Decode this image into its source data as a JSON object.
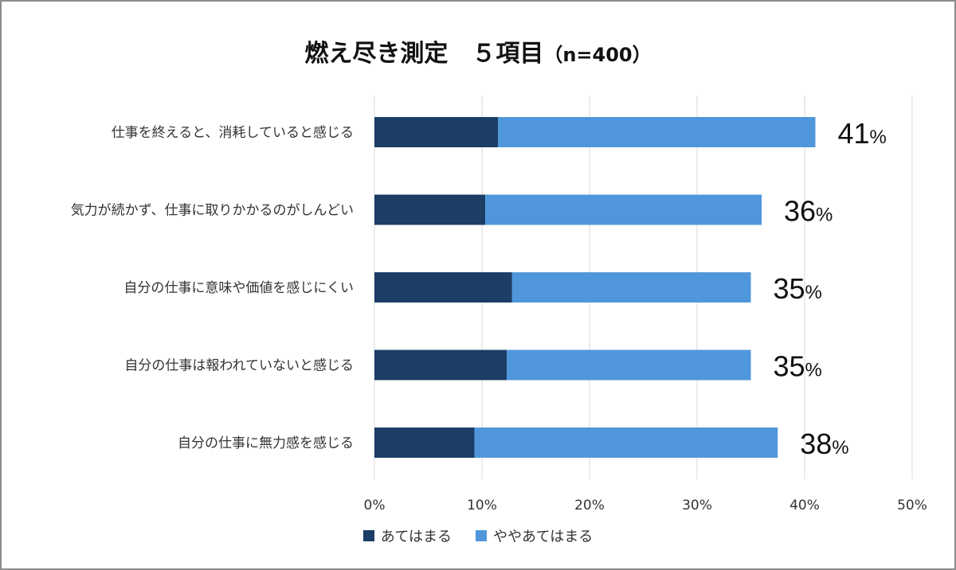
{
  "title": {
    "main": "燃え尽き測定　５項目",
    "sub": "（n=400）"
  },
  "colors": {
    "series1": "#1b3d66",
    "series2": "#4f97da",
    "grid": "#d9d9d9"
  },
  "chart_data": {
    "type": "bar",
    "orientation": "horizontal",
    "stacked": true,
    "categories": [
      "仕事を終えると、消耗していると感じる",
      "気力が続かず、仕事に取りかかるのがしんどい",
      "自分の仕事に意味や価値を感じにくい",
      "自分の仕事は報われていないと感じる",
      "自分の仕事に無力感を感じる"
    ],
    "series": [
      {
        "name": "あてはまる",
        "values": [
          11.5,
          10.3,
          12.8,
          12.3,
          9.3
        ]
      },
      {
        "name": "ややあてはまる",
        "values": [
          29.5,
          25.7,
          22.2,
          22.7,
          28.2
        ]
      }
    ],
    "totals": [
      "41",
      "36",
      "35",
      "35",
      "38"
    ],
    "total_suffix": "%",
    "xlim": [
      0,
      50
    ],
    "ticks": [
      "0%",
      "10%",
      "20%",
      "30%",
      "40%",
      "50%"
    ],
    "tick_values": [
      0,
      10,
      20,
      30,
      40,
      50
    ],
    "grid": true,
    "legend_position": "bottom"
  }
}
